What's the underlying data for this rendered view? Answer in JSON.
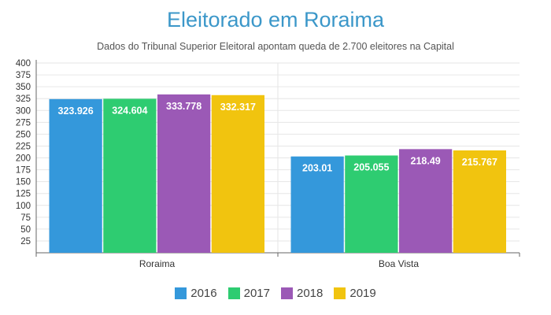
{
  "chart_data": {
    "type": "bar",
    "title": "Eleitorado em Roraima",
    "subtitle": "Dados do Tribunal Superior Eleitoral apontam queda de 2.700 eleitores na Capital",
    "categories": [
      "Roraima",
      "Boa Vista"
    ],
    "series": [
      {
        "name": "2016",
        "color": "#3498db",
        "values": [
          323.926,
          203.01
        ],
        "labels": [
          "323.926",
          "203.01"
        ]
      },
      {
        "name": "2017",
        "color": "#2ecc71",
        "values": [
          324.604,
          205.055
        ],
        "labels": [
          "324.604",
          "205.055"
        ]
      },
      {
        "name": "2018",
        "color": "#9b59b6",
        "values": [
          333.778,
          218.49
        ],
        "labels": [
          "333.778",
          "218.49"
        ]
      },
      {
        "name": "2019",
        "color": "#f1c40f",
        "values": [
          332.317,
          215.767
        ],
        "labels": [
          "332.317",
          "215.767"
        ]
      }
    ],
    "ylim": [
      0,
      400
    ],
    "yticks": [
      25,
      50,
      75,
      100,
      125,
      150,
      175,
      200,
      225,
      250,
      275,
      300,
      325,
      350,
      375,
      400
    ],
    "xlabel": "",
    "ylabel": "",
    "grid": true,
    "legend": "bottom"
  }
}
